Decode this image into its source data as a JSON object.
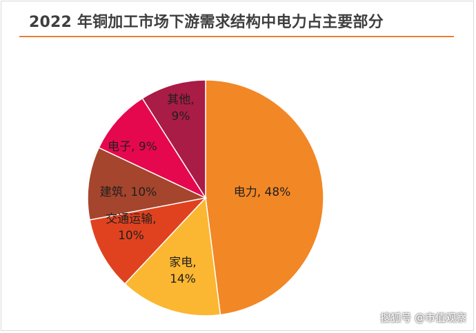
{
  "chart_data": {
    "type": "pie",
    "title": "2022 年铜加工市场下游需求结构中电力占主要部分",
    "slices": [
      {
        "name": "电力",
        "value": 48,
        "label_lines": [
          "电力, 48%"
        ],
        "color": "#f28726"
      },
      {
        "name": "家电",
        "value": 14,
        "label_lines": [
          "家电,",
          "14%"
        ],
        "color": "#fbb731"
      },
      {
        "name": "交通运输",
        "value": 10,
        "label_lines": [
          "交通运输,",
          "10%"
        ],
        "color": "#e0421f"
      },
      {
        "name": "建筑",
        "value": 10,
        "label_lines": [
          "建筑, 10%"
        ],
        "color": "#a6452d"
      },
      {
        "name": "电子",
        "value": 9,
        "label_lines": [
          "电子, 9%"
        ],
        "color": "#e6084f"
      },
      {
        "name": "其他",
        "value": 9,
        "label_lines": [
          "其他,",
          "9%"
        ],
        "color": "#a81c45"
      }
    ]
  },
  "watermark": "搜狐号 @市值观察"
}
